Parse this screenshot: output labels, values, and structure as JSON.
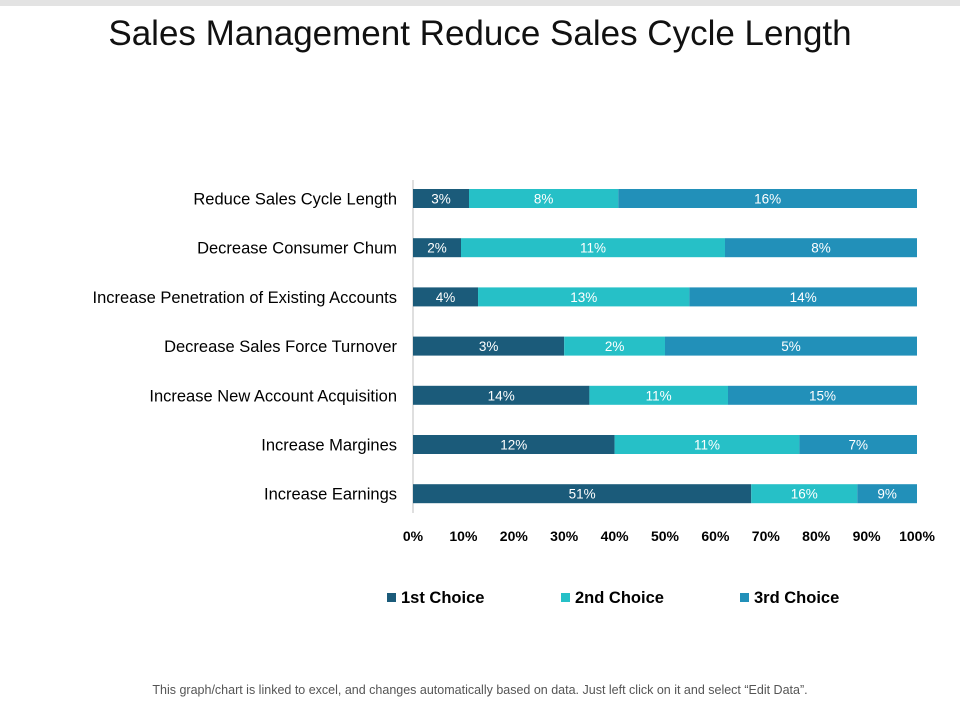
{
  "title": "Sales Management Reduce Sales Cycle Length",
  "footer": "This graph/chart is linked to excel, and changes automatically based on data. Just left click on it and select “Edit Data”.",
  "chart_data": {
    "type": "bar",
    "orientation": "horizontal",
    "stacked": "percent",
    "categories": [
      "Reduce Sales Cycle Length",
      "Decrease  Consumer Chum",
      "Increase Penetration of Existing Accounts",
      "Decrease Sales Force Turnover",
      "Increase New Account Acquisition",
      "Increase Margines",
      "Increase Earnings"
    ],
    "series": [
      {
        "name": "1st Choice",
        "color": "#1b5b7a",
        "values": [
          3,
          2,
          4,
          3,
          14,
          12,
          51
        ],
        "labels": [
          "3%",
          "2%",
          "4%",
          "3%",
          "14%",
          "12%",
          "51%"
        ]
      },
      {
        "name": "2nd Choice",
        "color": "#26c0c7",
        "values": [
          8,
          11,
          13,
          2,
          11,
          11,
          16
        ],
        "labels": [
          "8%",
          "11%",
          "13%",
          "2%",
          "11%",
          "11%",
          "16%"
        ]
      },
      {
        "name": "3rd Choice",
        "color": "#2290b9",
        "values": [
          16,
          8,
          14,
          5,
          15,
          7,
          9
        ],
        "labels": [
          "16%",
          "8%",
          "14%",
          "5%",
          "15%",
          "7%",
          "9%"
        ]
      }
    ],
    "xticks": [
      "0%",
      "10%",
      "20%",
      "30%",
      "40%",
      "50%",
      "60%",
      "70%",
      "80%",
      "90%",
      "100%"
    ],
    "xlim": [
      0,
      100
    ],
    "legend": "bottom",
    "grid": false
  }
}
